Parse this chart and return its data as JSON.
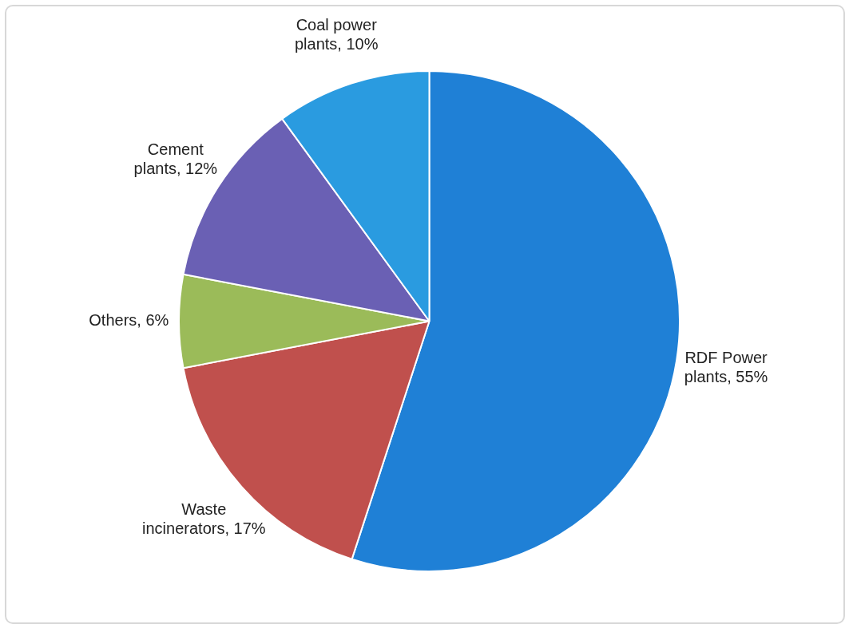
{
  "chart_data": {
    "type": "pie",
    "categories": [
      "RDF Power plants",
      "Waste incinerators",
      "Others",
      "Cement plants",
      "Coal power plants"
    ],
    "values": [
      55,
      17,
      6,
      12,
      10
    ],
    "value_labels": [
      "55%",
      "17%",
      "6%",
      "12%",
      "10%"
    ],
    "colors": [
      "#1f80d6",
      "#c0504d",
      "#9bbb59",
      "#6a60b4",
      "#2a9be0"
    ],
    "legend": false
  }
}
